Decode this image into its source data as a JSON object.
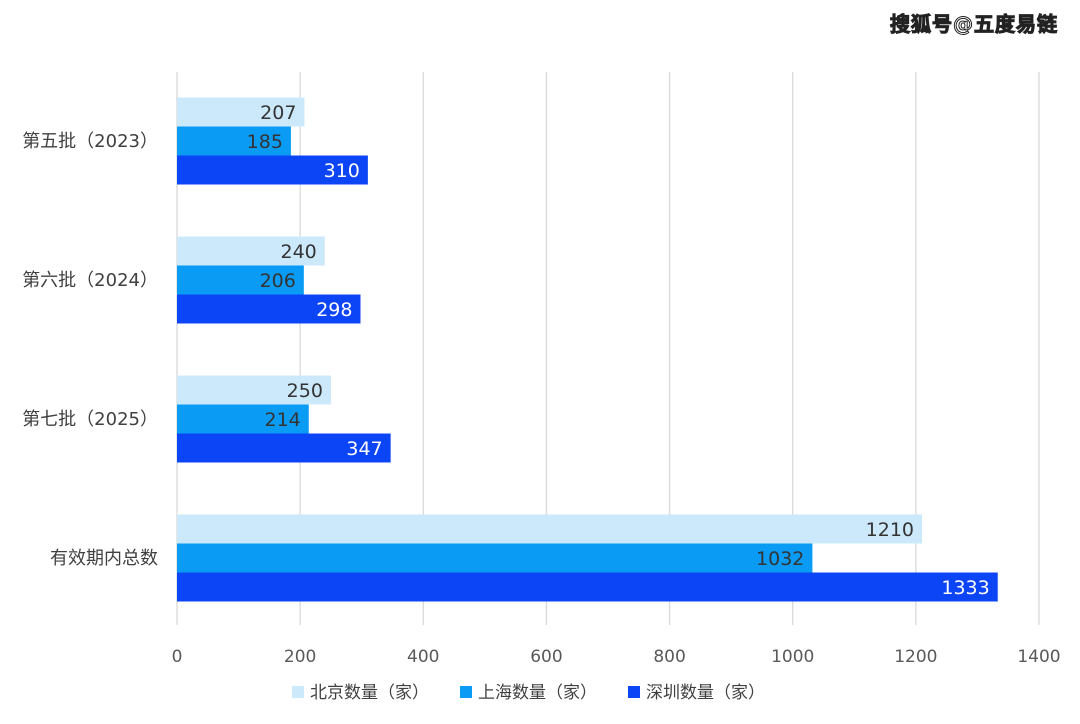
{
  "watermark": "搜狐号@五度易链",
  "chart_data": {
    "type": "bar",
    "orientation": "horizontal",
    "categories": [
      "第五批（2023）",
      "第六批（2024）",
      "第七批（2025）",
      "有效期内总数"
    ],
    "series": [
      {
        "name": "北京数量（家）",
        "color": "#cce9fb",
        "label_color": "#333333",
        "values": [
          207,
          240,
          250,
          1210
        ]
      },
      {
        "name": "上海数量（家）",
        "color": "#0a9cf5",
        "label_color": "#333333",
        "values": [
          185,
          206,
          214,
          1032
        ]
      },
      {
        "name": "深圳数量（家）",
        "color": "#0c45f5",
        "label_color": "#ffffff",
        "values": [
          310,
          298,
          347,
          1333
        ]
      }
    ],
    "xlim": [
      0,
      1400
    ],
    "xticks": [
      0,
      200,
      400,
      600,
      800,
      1000,
      1200,
      1400
    ],
    "grid": true,
    "legend_position": "bottom",
    "title": "",
    "xlabel": "",
    "ylabel": ""
  }
}
